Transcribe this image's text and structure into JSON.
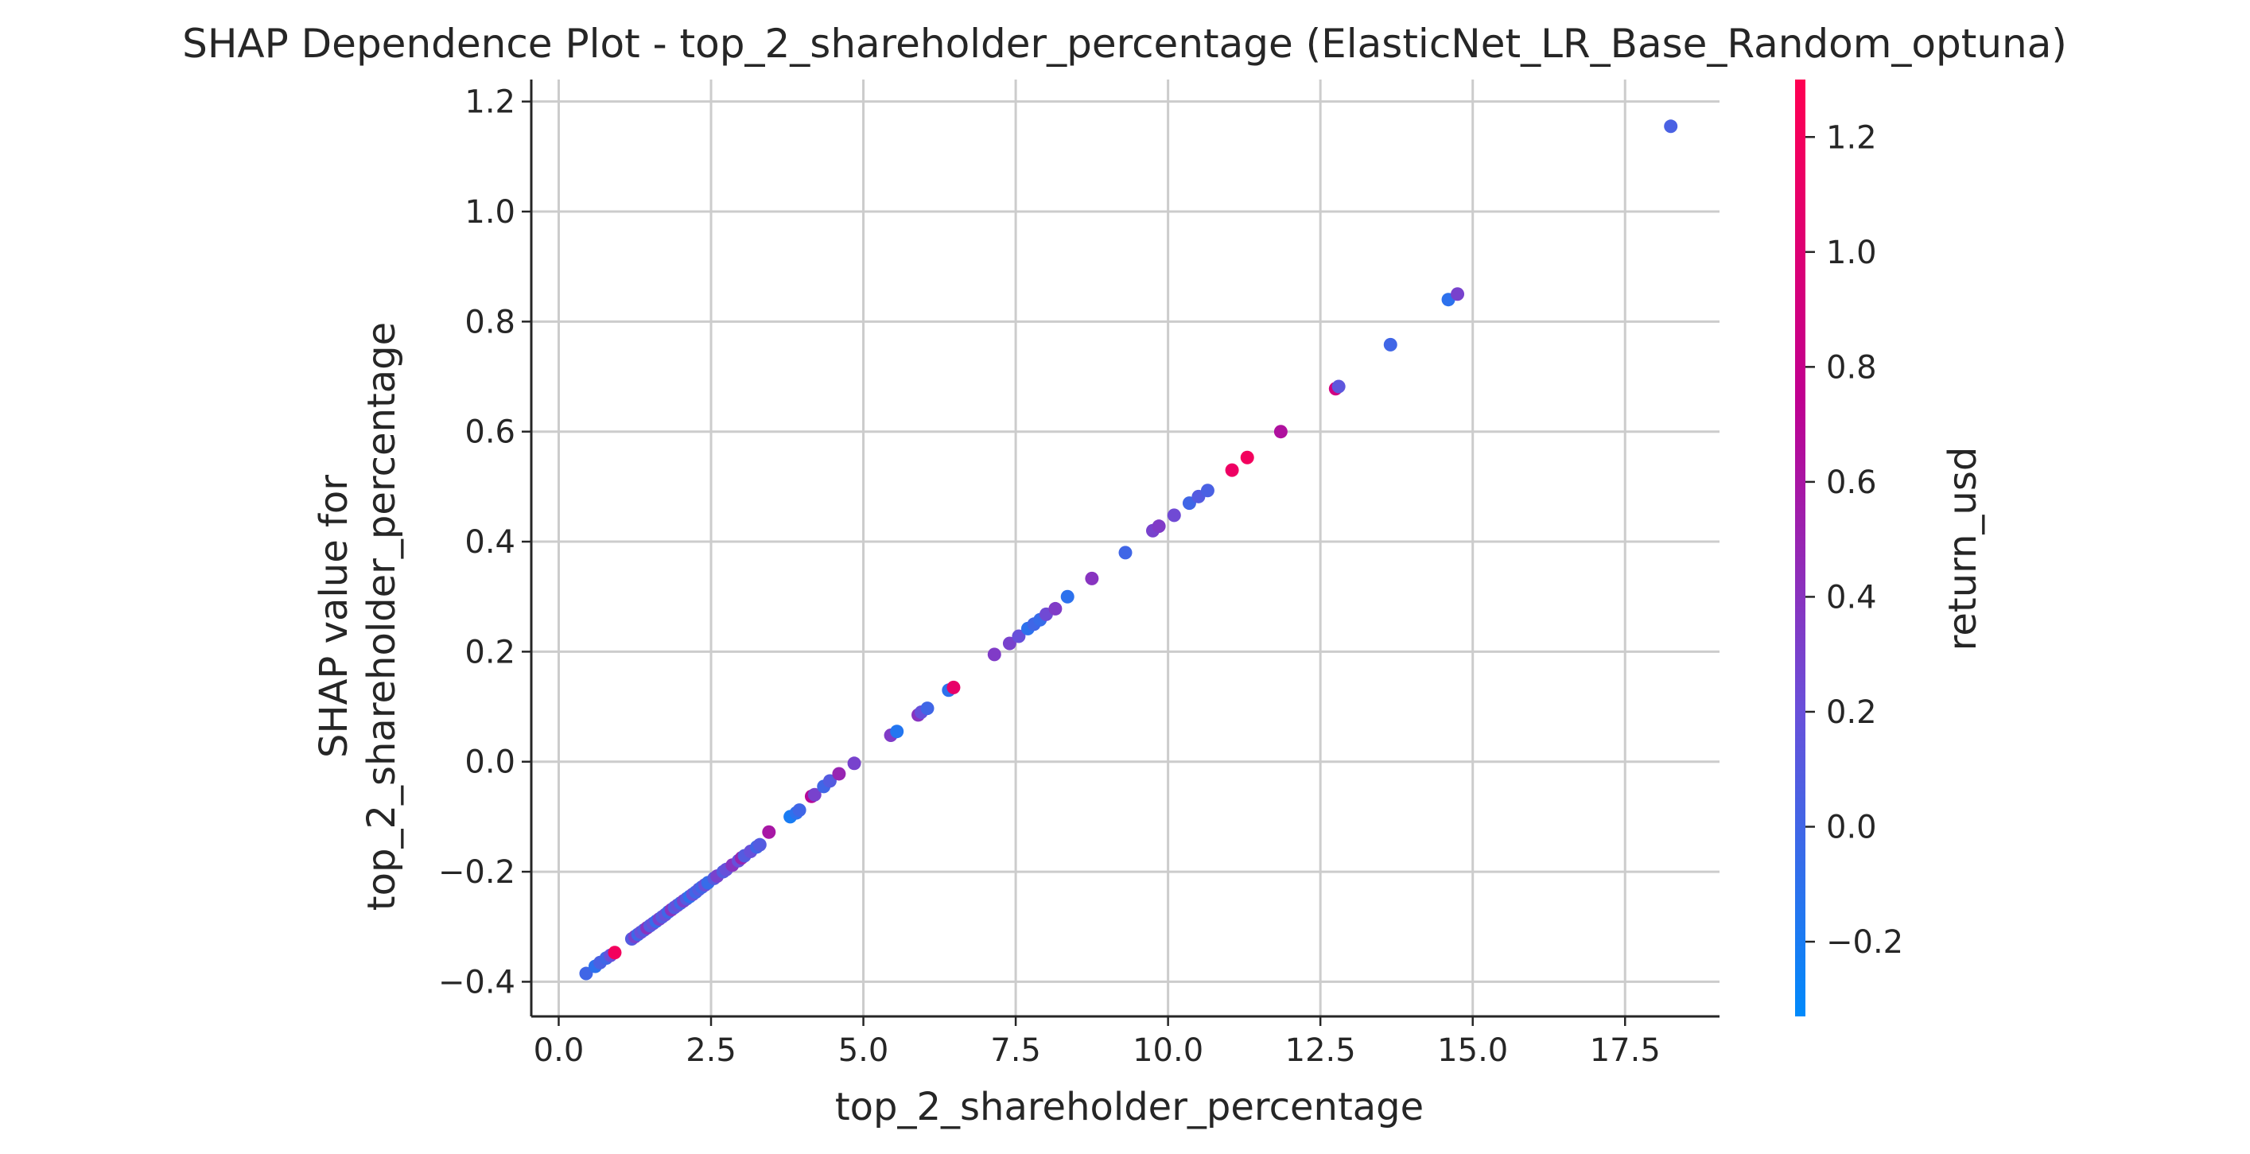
{
  "chart_data": {
    "type": "scatter",
    "title": "SHAP Dependence Plot - top_2_shareholder_percentage (ElasticNet_LR_Base_Random_optuna)",
    "xlabel": "top_2_shareholder_percentage",
    "ylabel_line1": "SHAP value for",
    "ylabel_line2": "top_2_shareholder_percentage",
    "xlim": [
      -0.45,
      19.05
    ],
    "ylim": [
      -0.463,
      1.24
    ],
    "x_ticks": [
      0.0,
      2.5,
      5.0,
      7.5,
      10.0,
      12.5,
      15.0,
      17.5
    ],
    "x_tick_labels": [
      "0.0",
      "2.5",
      "5.0",
      "7.5",
      "10.0",
      "12.5",
      "15.0",
      "17.5"
    ],
    "y_ticks": [
      -0.4,
      -0.2,
      0.0,
      0.2,
      0.4,
      0.6,
      0.8,
      1.0,
      1.2
    ],
    "y_tick_labels": [
      "−0.4",
      "−0.2",
      "0.0",
      "0.2",
      "0.4",
      "0.6",
      "0.8",
      "1.0",
      "1.2"
    ],
    "grid": true,
    "colorbar": {
      "label": "return_usd",
      "range": [
        -0.33,
        1.3
      ],
      "ticks": [
        -0.2,
        0.0,
        0.2,
        0.4,
        0.6,
        0.8,
        1.0,
        1.2
      ],
      "tick_labels": [
        "−0.2",
        "0.0",
        "0.2",
        "0.4",
        "0.6",
        "0.8",
        "1.0",
        "1.2"
      ],
      "colors": [
        "#008afb",
        "#6a4fd9",
        "#c00090",
        "#ff0052"
      ]
    },
    "points": [
      {
        "x": 0.45,
        "y": -0.385,
        "c": 0.0
      },
      {
        "x": 0.6,
        "y": -0.372,
        "c": -0.1
      },
      {
        "x": 0.68,
        "y": -0.365,
        "c": 0.05
      },
      {
        "x": 0.78,
        "y": -0.357,
        "c": 0.0
      },
      {
        "x": 0.85,
        "y": -0.352,
        "c": 0.2
      },
      {
        "x": 0.92,
        "y": -0.347,
        "c": 1.2
      },
      {
        "x": 1.2,
        "y": -0.322,
        "c": 0.1
      },
      {
        "x": 1.25,
        "y": -0.318,
        "c": 0.3
      },
      {
        "x": 1.3,
        "y": -0.314,
        "c": 0.0
      },
      {
        "x": 1.35,
        "y": -0.31,
        "c": 0.2
      },
      {
        "x": 1.4,
        "y": -0.306,
        "c": 0.1
      },
      {
        "x": 1.45,
        "y": -0.302,
        "c": 0.4
      },
      {
        "x": 1.5,
        "y": -0.298,
        "c": 0.1
      },
      {
        "x": 1.55,
        "y": -0.294,
        "c": 0.2
      },
      {
        "x": 1.6,
        "y": -0.29,
        "c": -0.05
      },
      {
        "x": 1.65,
        "y": -0.286,
        "c": 0.3
      },
      {
        "x": 1.7,
        "y": -0.282,
        "c": 0.1
      },
      {
        "x": 1.75,
        "y": -0.278,
        "c": 0.2
      },
      {
        "x": 1.8,
        "y": -0.273,
        "c": 0.0
      },
      {
        "x": 1.85,
        "y": -0.269,
        "c": 0.4
      },
      {
        "x": 1.9,
        "y": -0.265,
        "c": 0.1
      },
      {
        "x": 1.95,
        "y": -0.261,
        "c": 0.2
      },
      {
        "x": 2.0,
        "y": -0.257,
        "c": 0.0
      },
      {
        "x": 2.05,
        "y": -0.253,
        "c": 0.3
      },
      {
        "x": 2.1,
        "y": -0.249,
        "c": 0.1
      },
      {
        "x": 2.15,
        "y": -0.245,
        "c": -0.1
      },
      {
        "x": 2.2,
        "y": -0.241,
        "c": 0.2
      },
      {
        "x": 2.25,
        "y": -0.237,
        "c": 0.0
      },
      {
        "x": 2.3,
        "y": -0.232,
        "c": 0.1
      },
      {
        "x": 2.35,
        "y": -0.228,
        "c": 0.0
      },
      {
        "x": 2.4,
        "y": -0.224,
        "c": 0.2
      },
      {
        "x": 2.45,
        "y": -0.22,
        "c": -0.05
      },
      {
        "x": 2.55,
        "y": -0.212,
        "c": 0.1
      },
      {
        "x": 2.6,
        "y": -0.208,
        "c": 0.3
      },
      {
        "x": 2.7,
        "y": -0.2,
        "c": 0.1
      },
      {
        "x": 2.75,
        "y": -0.196,
        "c": 0.2
      },
      {
        "x": 2.85,
        "y": -0.188,
        "c": 0.4
      },
      {
        "x": 2.95,
        "y": -0.18,
        "c": 0.2
      },
      {
        "x": 3.0,
        "y": -0.175,
        "c": 0.5
      },
      {
        "x": 3.05,
        "y": -0.171,
        "c": 0.1
      },
      {
        "x": 3.15,
        "y": -0.163,
        "c": 0.2
      },
      {
        "x": 3.25,
        "y": -0.155,
        "c": 0.0
      },
      {
        "x": 3.3,
        "y": -0.151,
        "c": 0.1
      },
      {
        "x": 3.45,
        "y": -0.128,
        "c": 0.6
      },
      {
        "x": 3.8,
        "y": -0.1,
        "c": -0.2
      },
      {
        "x": 3.9,
        "y": -0.093,
        "c": -0.1
      },
      {
        "x": 3.95,
        "y": -0.088,
        "c": 0.0
      },
      {
        "x": 4.15,
        "y": -0.063,
        "c": 0.7
      },
      {
        "x": 4.2,
        "y": -0.06,
        "c": 0.3
      },
      {
        "x": 4.35,
        "y": -0.045,
        "c": 0.0
      },
      {
        "x": 4.45,
        "y": -0.035,
        "c": 0.1
      },
      {
        "x": 4.6,
        "y": -0.022,
        "c": 0.5
      },
      {
        "x": 4.85,
        "y": -0.003,
        "c": 0.3
      },
      {
        "x": 5.45,
        "y": 0.048,
        "c": 0.35
      },
      {
        "x": 5.55,
        "y": 0.055,
        "c": -0.15
      },
      {
        "x": 5.9,
        "y": 0.085,
        "c": 0.4
      },
      {
        "x": 5.95,
        "y": 0.09,
        "c": 0.2
      },
      {
        "x": 6.05,
        "y": 0.097,
        "c": 0.0
      },
      {
        "x": 6.4,
        "y": 0.13,
        "c": -0.1
      },
      {
        "x": 6.48,
        "y": 0.135,
        "c": 1.1
      },
      {
        "x": 7.15,
        "y": 0.195,
        "c": 0.35
      },
      {
        "x": 7.4,
        "y": 0.215,
        "c": 0.3
      },
      {
        "x": 7.55,
        "y": 0.228,
        "c": 0.2
      },
      {
        "x": 7.7,
        "y": 0.242,
        "c": -0.1
      },
      {
        "x": 7.8,
        "y": 0.25,
        "c": 0.0
      },
      {
        "x": 7.9,
        "y": 0.258,
        "c": -0.05
      },
      {
        "x": 8.0,
        "y": 0.268,
        "c": 0.25
      },
      {
        "x": 8.15,
        "y": 0.278,
        "c": 0.35
      },
      {
        "x": 8.35,
        "y": 0.3,
        "c": -0.1
      },
      {
        "x": 8.75,
        "y": 0.333,
        "c": 0.4
      },
      {
        "x": 9.3,
        "y": 0.38,
        "c": 0.0
      },
      {
        "x": 9.75,
        "y": 0.42,
        "c": 0.3
      },
      {
        "x": 9.85,
        "y": 0.428,
        "c": 0.35
      },
      {
        "x": 10.1,
        "y": 0.448,
        "c": 0.25
      },
      {
        "x": 10.35,
        "y": 0.47,
        "c": 0.0
      },
      {
        "x": 10.5,
        "y": 0.482,
        "c": 0.1
      },
      {
        "x": 10.65,
        "y": 0.493,
        "c": 0.05
      },
      {
        "x": 11.05,
        "y": 0.53,
        "c": 1.15
      },
      {
        "x": 11.3,
        "y": 0.553,
        "c": 1.2
      },
      {
        "x": 11.85,
        "y": 0.6,
        "c": 0.65
      },
      {
        "x": 12.75,
        "y": 0.678,
        "c": 0.9
      },
      {
        "x": 12.8,
        "y": 0.682,
        "c": 0.15
      },
      {
        "x": 13.65,
        "y": 0.758,
        "c": 0.0
      },
      {
        "x": 14.6,
        "y": 0.84,
        "c": -0.1
      },
      {
        "x": 14.75,
        "y": 0.85,
        "c": 0.3
      },
      {
        "x": 18.25,
        "y": 1.155,
        "c": 0.05
      }
    ]
  }
}
